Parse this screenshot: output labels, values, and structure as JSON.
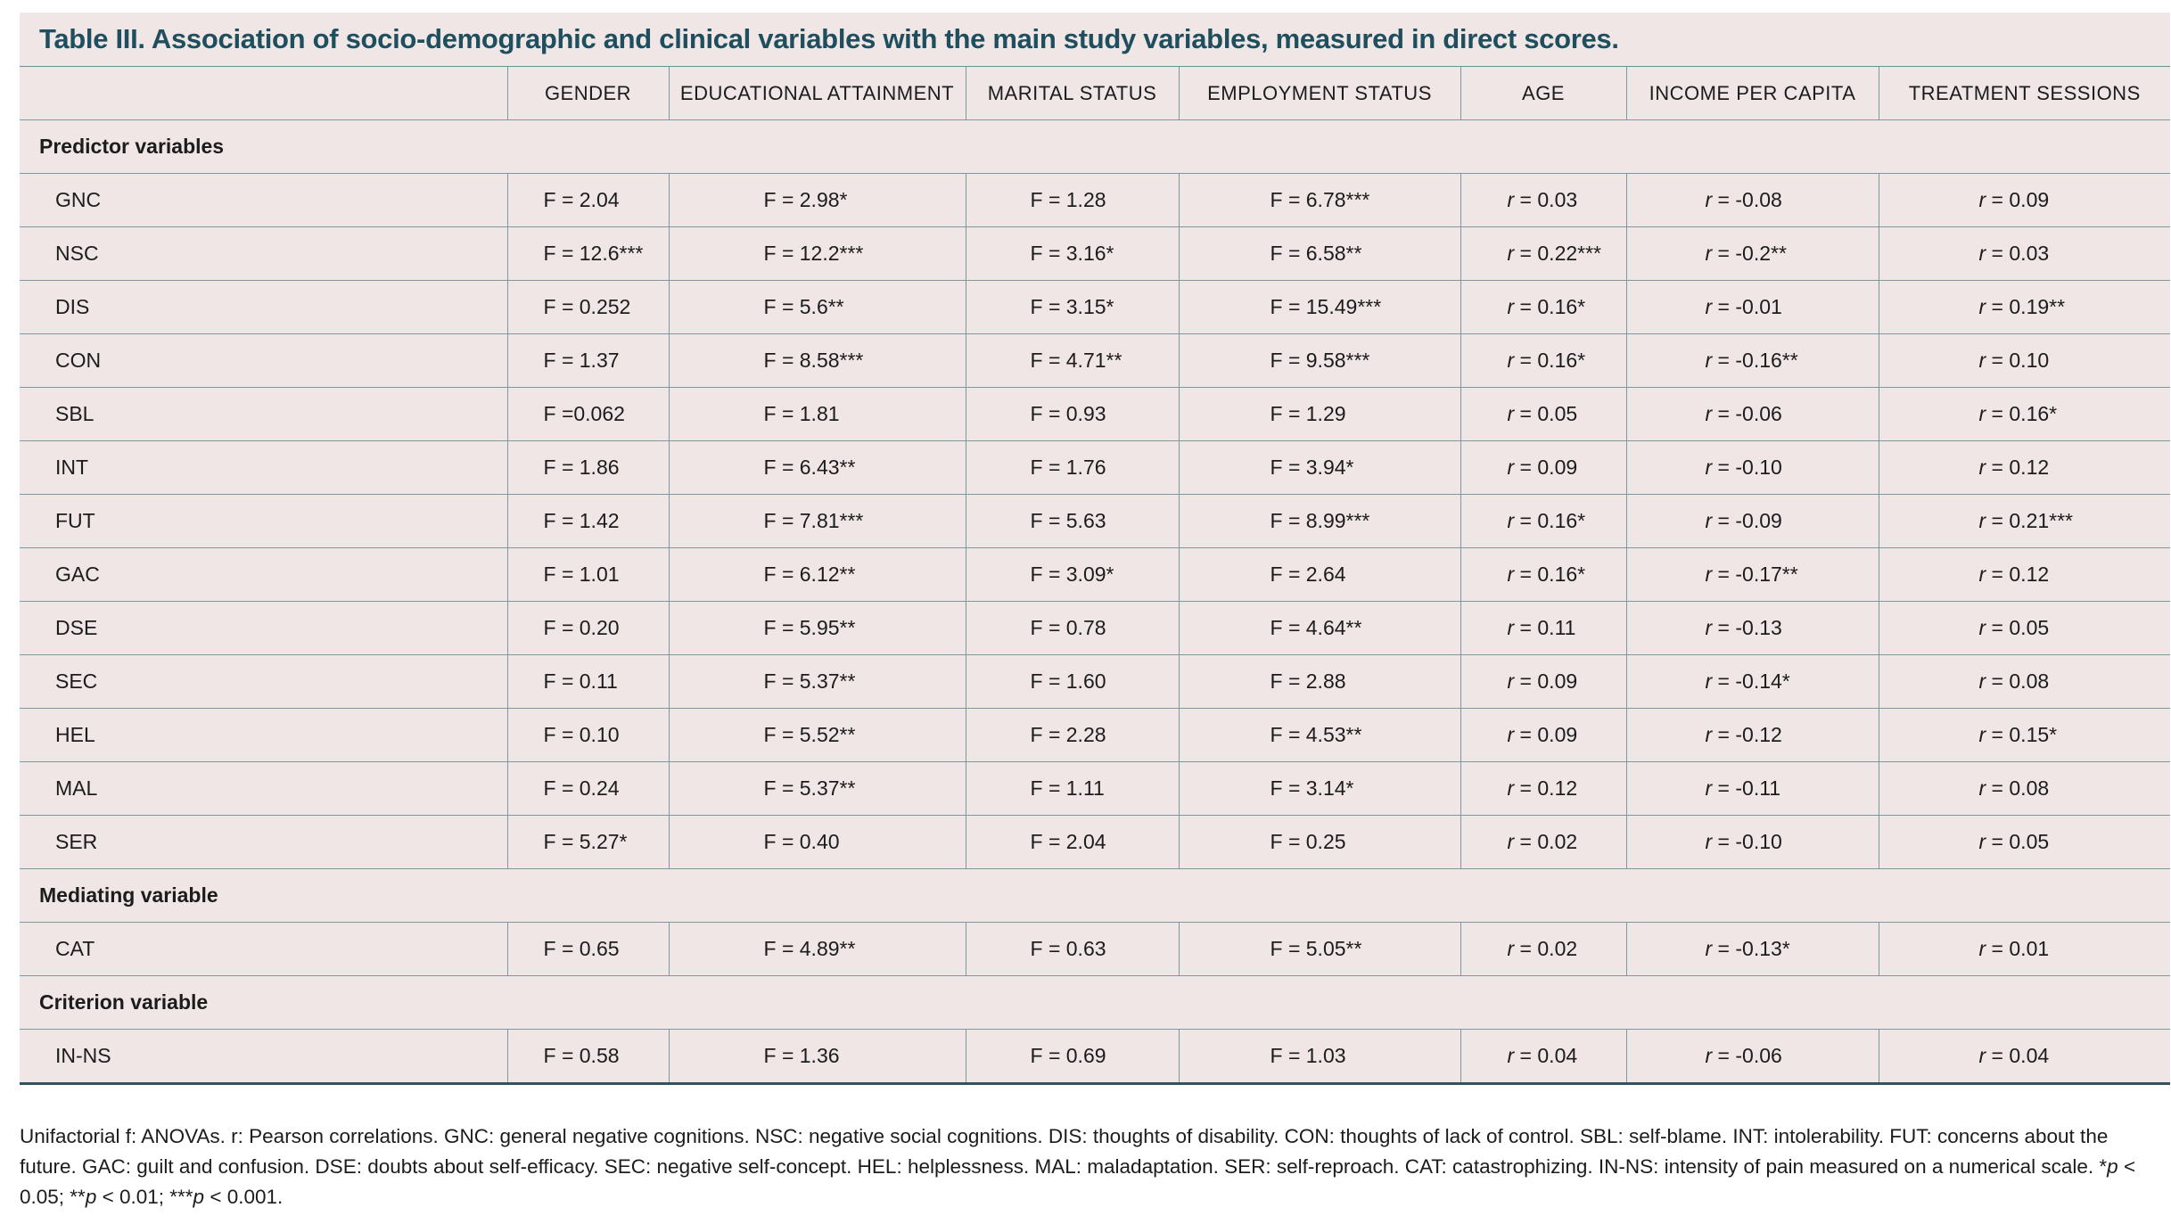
{
  "title": "Table III. Association of socio-demographic and clinical variables with the main study variables, measured in direct scores.",
  "columns": [
    "GENDER",
    "EDUCATIONAL ATTAINMENT",
    "MARITAL STATUS",
    "EMPLOYMENT STATUS",
    "AGE",
    "INCOME PER CAPITA",
    "TREATMENT SESSIONS"
  ],
  "sections": [
    {
      "name": "Predictor variables",
      "rows": [
        {
          "label": "GNC",
          "values": [
            "F = 2.04",
            "F = 2.98*",
            "F = 1.28",
            "F = 6.78***",
            "r = 0.03",
            "r = -0.08",
            "r = 0.09"
          ]
        },
        {
          "label": "NSC",
          "values": [
            "F = 12.6***",
            "F = 12.2***",
            "F = 3.16*",
            "F = 6.58**",
            "r = 0.22***",
            "r = -0.2**",
            "r = 0.03"
          ]
        },
        {
          "label": "DIS",
          "values": [
            "F = 0.252",
            "F = 5.6**",
            "F = 3.15*",
            "F = 15.49***",
            "r = 0.16*",
            "r = -0.01",
            "r = 0.19**"
          ]
        },
        {
          "label": "CON",
          "values": [
            "F = 1.37",
            "F = 8.58***",
            "F = 4.71**",
            "F = 9.58***",
            "r = 0.16*",
            "r = -0.16**",
            "r = 0.10"
          ]
        },
        {
          "label": "SBL",
          "values": [
            "F =0.062",
            "F = 1.81",
            "F = 0.93",
            "F = 1.29",
            "r = 0.05",
            "r = -0.06",
            "r = 0.16*"
          ]
        },
        {
          "label": "INT",
          "values": [
            "F = 1.86",
            "F = 6.43**",
            "F = 1.76",
            "F = 3.94*",
            "r = 0.09",
            "r = -0.10",
            "r = 0.12"
          ]
        },
        {
          "label": "FUT",
          "values": [
            "F = 1.42",
            "F = 7.81***",
            "F = 5.63",
            "F = 8.99***",
            "r = 0.16*",
            "r = -0.09",
            "r = 0.21***"
          ]
        },
        {
          "label": "GAC",
          "values": [
            "F = 1.01",
            "F = 6.12**",
            "F = 3.09*",
            "F = 2.64",
            "r = 0.16*",
            "r = -0.17**",
            "r = 0.12"
          ]
        },
        {
          "label": "DSE",
          "values": [
            "F = 0.20",
            "F = 5.95**",
            "F = 0.78",
            "F = 4.64**",
            "r = 0.11",
            "r = -0.13",
            "r = 0.05"
          ]
        },
        {
          "label": "SEC",
          "values": [
            "F = 0.11",
            "F = 5.37**",
            "F = 1.60",
            "F = 2.88",
            "r = 0.09",
            "r = -0.14*",
            "r = 0.08"
          ]
        },
        {
          "label": "HEL",
          "values": [
            "F = 0.10",
            "F = 5.52**",
            "F = 2.28",
            "F = 4.53**",
            "r = 0.09",
            "r = -0.12",
            "r = 0.15*"
          ]
        },
        {
          "label": "MAL",
          "values": [
            "F = 0.24",
            "F = 5.37**",
            "F = 1.11",
            "F = 3.14*",
            "r = 0.12",
            "r = -0.11",
            "r = 0.08"
          ]
        },
        {
          "label": "SER",
          "values": [
            "F = 5.27*",
            "F = 0.40",
            "F = 2.04",
            "F = 0.25",
            "r = 0.02",
            "r = -0.10",
            "r = 0.05"
          ]
        }
      ]
    },
    {
      "name": "Mediating variable",
      "rows": [
        {
          "label": "CAT",
          "values": [
            "F = 0.65",
            "F = 4.89**",
            "F = 0.63",
            "F = 5.05**",
            "r = 0.02",
            "r = -0.13*",
            "r = 0.01"
          ]
        }
      ]
    },
    {
      "name": "Criterion variable",
      "rows": [
        {
          "label": "IN-NS",
          "values": [
            "F = 0.58",
            "F = 1.36",
            "F = 0.69",
            "F = 1.03",
            "r = 0.04",
            "r = -0.06",
            "r = 0.04"
          ]
        }
      ]
    }
  ],
  "footnote": "Unifactorial f: ANOVAs. r: Pearson correlations. GNC: general negative cognitions. NSC: negative social cognitions. DIS: thoughts of disability. CON: thoughts of lack of control. SBL: self-blame. INT: intolerability. FUT: concerns about the future. GAC: guilt and confusion. DSE: doubts about self-efficacy. SEC: negative self-concept. HEL: helplessness. MAL: maladaptation. SER: self-reproach. CAT: catastrophizing. IN-NS: intensity of pain measured on a numerical scale. *p < 0.05; **p < 0.01; ***p < 0.001.",
  "colors": {
    "panel_background": "#efe6e5",
    "title_color": "#1f4f5e",
    "rule_color": "#7e98a0"
  }
}
